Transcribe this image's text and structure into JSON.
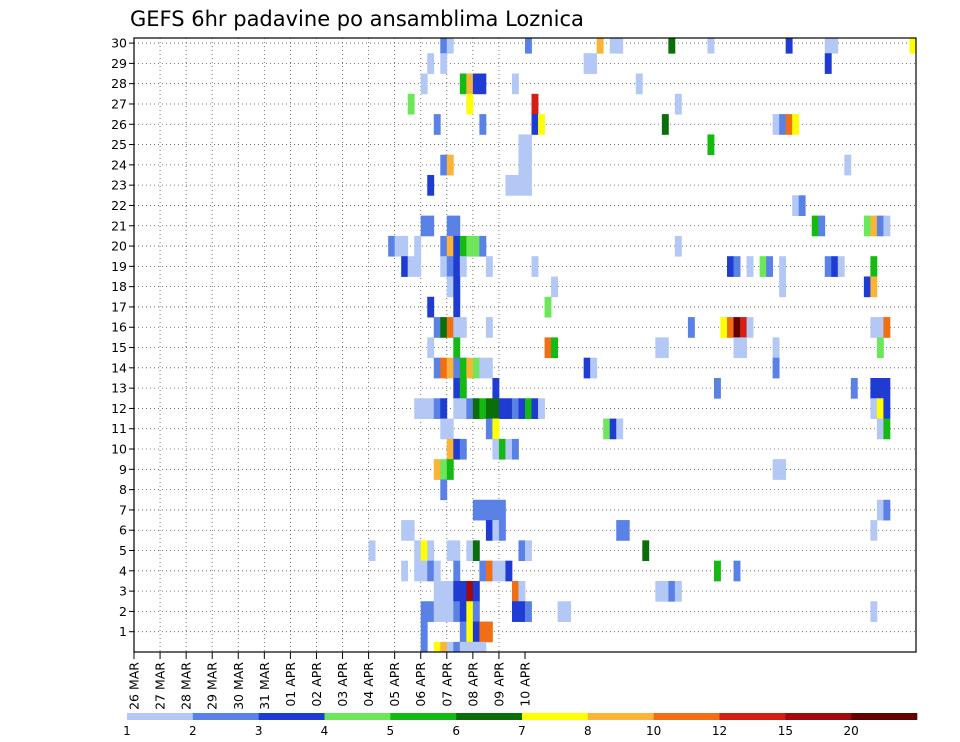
{
  "chart_data": {
    "type": "heatmap",
    "title": "GEFS 6hr padavine po ansamblima Loznica",
    "x_tick_labels": [
      "26 MAR",
      "27 MAR",
      "28 MAR",
      "29 MAR",
      "30 MAR",
      "31 MAR",
      "01 APR",
      "02 APR",
      "03 APR",
      "04 APR",
      "05 APR",
      "06 APR",
      "07 APR",
      "08 APR",
      "09 APR",
      "10 APR"
    ],
    "x_range": [
      "26 MAR 00Z",
      "10 APR 00Z"
    ],
    "x_step": "6hr",
    "y_tick_labels": [
      "1",
      "2",
      "3",
      "4",
      "5",
      "6",
      "7",
      "8",
      "9",
      "10",
      "11",
      "12",
      "13",
      "14",
      "15",
      "16",
      "17",
      "18",
      "19",
      "20",
      "21",
      "22",
      "23",
      "24",
      "25",
      "26",
      "27",
      "28",
      "29",
      "30"
    ],
    "y_range": [
      0,
      30
    ],
    "grid": true,
    "colorbar": {
      "labels": [
        "1",
        "2",
        "3",
        "4",
        "5",
        "6",
        "7",
        "8",
        "10",
        "12",
        "15",
        "20"
      ],
      "colors": [
        "#b4c8f5",
        "#5a82e6",
        "#1e3cd2",
        "#6ee65a",
        "#14b914",
        "#0a6e0a",
        "#ffff00",
        "#fab437",
        "#f06e14",
        "#d21e14",
        "#a00a0a",
        "#640000"
      ]
    },
    "cells_legend": "each cell = [ensemble_member, 6-hourly time step index from 26 MAR 00Z, precipitation class 1-12]",
    "cells": [
      [
        30,
        47,
        2
      ],
      [
        30,
        48,
        1
      ],
      [
        30,
        60,
        2
      ],
      [
        30,
        71,
        8
      ],
      [
        30,
        73,
        1
      ],
      [
        30,
        74,
        1
      ],
      [
        30,
        82,
        6
      ],
      [
        30,
        88,
        1
      ],
      [
        30,
        100,
        3
      ],
      [
        30,
        106,
        1
      ],
      [
        30,
        107,
        1
      ],
      [
        30,
        119,
        7
      ],
      [
        29,
        45,
        1
      ],
      [
        29,
        47,
        1
      ],
      [
        29,
        69,
        1
      ],
      [
        29,
        70,
        1
      ],
      [
        29,
        106,
        3
      ],
      [
        28,
        44,
        1
      ],
      [
        28,
        50,
        5
      ],
      [
        28,
        51,
        8
      ],
      [
        28,
        52,
        3
      ],
      [
        28,
        53,
        3
      ],
      [
        28,
        58,
        1
      ],
      [
        28,
        77,
        1
      ],
      [
        27,
        42,
        4
      ],
      [
        27,
        51,
        7
      ],
      [
        27,
        61,
        10
      ],
      [
        27,
        83,
        1
      ],
      [
        26,
        46,
        2
      ],
      [
        26,
        53,
        2
      ],
      [
        26,
        61,
        3
      ],
      [
        26,
        62,
        7
      ],
      [
        26,
        81,
        6
      ],
      [
        26,
        98,
        1
      ],
      [
        26,
        99,
        2
      ],
      [
        26,
        100,
        9
      ],
      [
        26,
        101,
        7
      ],
      [
        25,
        59,
        1
      ],
      [
        25,
        60,
        1
      ],
      [
        25,
        88,
        5
      ],
      [
        24,
        47,
        2
      ],
      [
        24,
        48,
        8
      ],
      [
        24,
        59,
        1
      ],
      [
        24,
        60,
        1
      ],
      [
        24,
        109,
        1
      ],
      [
        23,
        45,
        3
      ],
      [
        23,
        57,
        1
      ],
      [
        23,
        58,
        1
      ],
      [
        23,
        59,
        1
      ],
      [
        23,
        60,
        1
      ],
      [
        22,
        101,
        1
      ],
      [
        22,
        102,
        2
      ],
      [
        21,
        44,
        2
      ],
      [
        21,
        45,
        2
      ],
      [
        21,
        48,
        2
      ],
      [
        21,
        49,
        2
      ],
      [
        21,
        104,
        5
      ],
      [
        21,
        105,
        2
      ],
      [
        21,
        112,
        4
      ],
      [
        21,
        113,
        8
      ],
      [
        21,
        114,
        2
      ],
      [
        21,
        115,
        1
      ],
      [
        20,
        39,
        2
      ],
      [
        20,
        40,
        1
      ],
      [
        20,
        41,
        1
      ],
      [
        20,
        43,
        1
      ],
      [
        20,
        47,
        2
      ],
      [
        20,
        48,
        8
      ],
      [
        20,
        49,
        3
      ],
      [
        20,
        50,
        5
      ],
      [
        20,
        51,
        4
      ],
      [
        20,
        52,
        4
      ],
      [
        20,
        53,
        2
      ],
      [
        20,
        83,
        1
      ],
      [
        19,
        41,
        3
      ],
      [
        19,
        42,
        1
      ],
      [
        19,
        43,
        1
      ],
      [
        19,
        47,
        1
      ],
      [
        19,
        48,
        2
      ],
      [
        19,
        49,
        3
      ],
      [
        19,
        50,
        1
      ],
      [
        19,
        54,
        1
      ],
      [
        19,
        61,
        1
      ],
      [
        19,
        91,
        3
      ],
      [
        19,
        92,
        2
      ],
      [
        19,
        94,
        1
      ],
      [
        19,
        96,
        4
      ],
      [
        19,
        97,
        2
      ],
      [
        19,
        99,
        1
      ],
      [
        19,
        106,
        2
      ],
      [
        19,
        107,
        3
      ],
      [
        19,
        108,
        1
      ],
      [
        19,
        113,
        5
      ],
      [
        18,
        48,
        1
      ],
      [
        18,
        49,
        3
      ],
      [
        18,
        64,
        1
      ],
      [
        18,
        99,
        1
      ],
      [
        18,
        112,
        3
      ],
      [
        18,
        113,
        8
      ],
      [
        17,
        45,
        3
      ],
      [
        17,
        49,
        3
      ],
      [
        17,
        63,
        4
      ],
      [
        16,
        46,
        2
      ],
      [
        16,
        47,
        6
      ],
      [
        16,
        48,
        9
      ],
      [
        16,
        49,
        1
      ],
      [
        16,
        50,
        1
      ],
      [
        16,
        54,
        1
      ],
      [
        16,
        85,
        2
      ],
      [
        16,
        90,
        7
      ],
      [
        16,
        91,
        9
      ],
      [
        16,
        92,
        12
      ],
      [
        16,
        93,
        10
      ],
      [
        16,
        94,
        1
      ],
      [
        16,
        113,
        1
      ],
      [
        16,
        114,
        1
      ],
      [
        16,
        115,
        9
      ],
      [
        15,
        45,
        1
      ],
      [
        15,
        49,
        5
      ],
      [
        15,
        63,
        9
      ],
      [
        15,
        64,
        5
      ],
      [
        15,
        80,
        1
      ],
      [
        15,
        81,
        1
      ],
      [
        15,
        92,
        1
      ],
      [
        15,
        93,
        1
      ],
      [
        15,
        98,
        1
      ],
      [
        15,
        114,
        4
      ],
      [
        14,
        46,
        2
      ],
      [
        14,
        47,
        9
      ],
      [
        14,
        48,
        8
      ],
      [
        14,
        49,
        2
      ],
      [
        14,
        50,
        5
      ],
      [
        14,
        51,
        8
      ],
      [
        14,
        52,
        4
      ],
      [
        14,
        53,
        1
      ],
      [
        14,
        54,
        1
      ],
      [
        14,
        69,
        3
      ],
      [
        14,
        70,
        1
      ],
      [
        14,
        98,
        2
      ],
      [
        13,
        49,
        3
      ],
      [
        13,
        50,
        5
      ],
      [
        13,
        55,
        3
      ],
      [
        13,
        89,
        2
      ],
      [
        13,
        110,
        2
      ],
      [
        13,
        113,
        3
      ],
      [
        13,
        114,
        3
      ],
      [
        13,
        115,
        3
      ],
      [
        12,
        43,
        1
      ],
      [
        12,
        44,
        1
      ],
      [
        12,
        45,
        1
      ],
      [
        12,
        46,
        2
      ],
      [
        12,
        47,
        3
      ],
      [
        12,
        49,
        1
      ],
      [
        12,
        50,
        1
      ],
      [
        12,
        51,
        2
      ],
      [
        12,
        52,
        6
      ],
      [
        12,
        53,
        5
      ],
      [
        12,
        54,
        6
      ],
      [
        12,
        55,
        6
      ],
      [
        12,
        56,
        3
      ],
      [
        12,
        57,
        3
      ],
      [
        12,
        58,
        2
      ],
      [
        12,
        59,
        3
      ],
      [
        12,
        60,
        5
      ],
      [
        12,
        61,
        3
      ],
      [
        12,
        62,
        1
      ],
      [
        12,
        113,
        1
      ],
      [
        12,
        114,
        7
      ],
      [
        12,
        115,
        3
      ],
      [
        11,
        47,
        1
      ],
      [
        11,
        48,
        1
      ],
      [
        11,
        54,
        2
      ],
      [
        11,
        55,
        7
      ],
      [
        11,
        72,
        4
      ],
      [
        11,
        73,
        3
      ],
      [
        11,
        74,
        1
      ],
      [
        11,
        114,
        1
      ],
      [
        11,
        115,
        5
      ],
      [
        10,
        48,
        8
      ],
      [
        10,
        49,
        3
      ],
      [
        10,
        50,
        2
      ],
      [
        10,
        55,
        1
      ],
      [
        10,
        56,
        5
      ],
      [
        10,
        57,
        1
      ],
      [
        10,
        58,
        2
      ],
      [
        9,
        46,
        8
      ],
      [
        9,
        47,
        4
      ],
      [
        9,
        48,
        5
      ],
      [
        9,
        98,
        1
      ],
      [
        9,
        99,
        1
      ],
      [
        8,
        47,
        2
      ],
      [
        7,
        52,
        2
      ],
      [
        7,
        53,
        2
      ],
      [
        7,
        54,
        2
      ],
      [
        7,
        55,
        2
      ],
      [
        7,
        56,
        2
      ],
      [
        7,
        114,
        1
      ],
      [
        7,
        115,
        2
      ],
      [
        6,
        41,
        1
      ],
      [
        6,
        42,
        1
      ],
      [
        6,
        54,
        3
      ],
      [
        6,
        55,
        1
      ],
      [
        6,
        56,
        2
      ],
      [
        6,
        74,
        2
      ],
      [
        6,
        75,
        2
      ],
      [
        6,
        113,
        1
      ],
      [
        5,
        36,
        1
      ],
      [
        5,
        43,
        1
      ],
      [
        5,
        44,
        7
      ],
      [
        5,
        45,
        1
      ],
      [
        5,
        48,
        1
      ],
      [
        5,
        49,
        1
      ],
      [
        5,
        51,
        1
      ],
      [
        5,
        52,
        6
      ],
      [
        5,
        59,
        2
      ],
      [
        5,
        60,
        1
      ],
      [
        5,
        78,
        6
      ],
      [
        4,
        41,
        1
      ],
      [
        4,
        43,
        1
      ],
      [
        4,
        44,
        1
      ],
      [
        4,
        45,
        2
      ],
      [
        4,
        46,
        1
      ],
      [
        4,
        49,
        2
      ],
      [
        4,
        53,
        2
      ],
      [
        4,
        54,
        9
      ],
      [
        4,
        55,
        1
      ],
      [
        4,
        56,
        1
      ],
      [
        4,
        57,
        3
      ],
      [
        4,
        89,
        5
      ],
      [
        4,
        92,
        2
      ],
      [
        3,
        46,
        1
      ],
      [
        3,
        47,
        1
      ],
      [
        3,
        48,
        1
      ],
      [
        3,
        49,
        3
      ],
      [
        3,
        50,
        3
      ],
      [
        3,
        51,
        11
      ],
      [
        3,
        52,
        3
      ],
      [
        3,
        58,
        9
      ],
      [
        3,
        59,
        1
      ],
      [
        3,
        80,
        1
      ],
      [
        3,
        81,
        1
      ],
      [
        3,
        82,
        2
      ],
      [
        3,
        83,
        1
      ],
      [
        2,
        44,
        2
      ],
      [
        2,
        45,
        2
      ],
      [
        2,
        46,
        1
      ],
      [
        2,
        47,
        1
      ],
      [
        2,
        48,
        1
      ],
      [
        2,
        49,
        2
      ],
      [
        2,
        50,
        3
      ],
      [
        2,
        51,
        7
      ],
      [
        2,
        52,
        2
      ],
      [
        2,
        58,
        3
      ],
      [
        2,
        59,
        3
      ],
      [
        2,
        60,
        2
      ],
      [
        2,
        65,
        1
      ],
      [
        2,
        66,
        1
      ],
      [
        2,
        113,
        1
      ],
      [
        1,
        44,
        2
      ],
      [
        1,
        50,
        2
      ],
      [
        1,
        51,
        7
      ],
      [
        1,
        52,
        3
      ],
      [
        1,
        53,
        9
      ],
      [
        1,
        54,
        9
      ],
      [
        0,
        44,
        2
      ],
      [
        0,
        46,
        7
      ],
      [
        0,
        47,
        8
      ],
      [
        0,
        48,
        1
      ],
      [
        0,
        49,
        2
      ],
      [
        0,
        50,
        1
      ],
      [
        0,
        51,
        1
      ],
      [
        0,
        52,
        1
      ],
      [
        0,
        53,
        1
      ]
    ]
  }
}
